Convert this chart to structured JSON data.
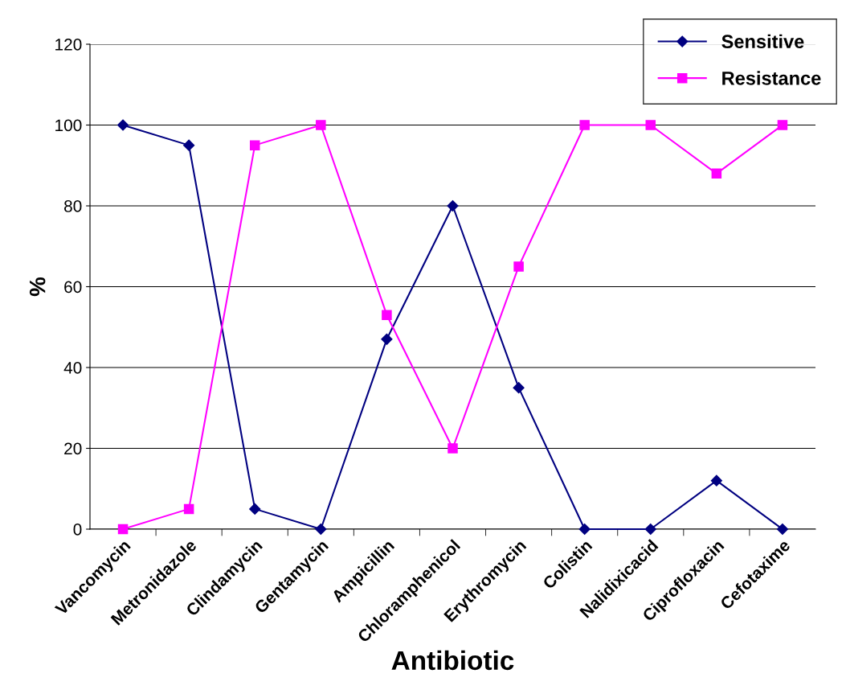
{
  "chart_data": {
    "type": "line",
    "xlabel": "Antibiotic",
    "ylabel": "%",
    "categories": [
      "Vancomycin",
      "Metronidazole",
      "Clindamycin",
      "Gentamycin",
      "Ampicillin",
      "Chloramphenicol",
      "Erythromycin",
      "Colistin",
      "Nalidixicacid",
      "Ciprofloxacin",
      "Cefotaxime"
    ],
    "series": [
      {
        "name": "Sensitive",
        "color": "#000080",
        "marker": "diamond",
        "values": [
          100,
          95,
          5,
          0,
          47,
          80,
          35,
          0,
          0,
          12,
          0
        ]
      },
      {
        "name": "Resistance",
        "color": "#ff00ff",
        "marker": "square",
        "values": [
          0,
          5,
          95,
          100,
          53,
          20,
          65,
          100,
          100,
          88,
          100
        ]
      }
    ],
    "ylim": [
      0,
      120
    ],
    "yticks": [
      0,
      20,
      40,
      60,
      80,
      100,
      120
    ],
    "grid": "y",
    "legend": "top right",
    "line_style": "solid"
  }
}
